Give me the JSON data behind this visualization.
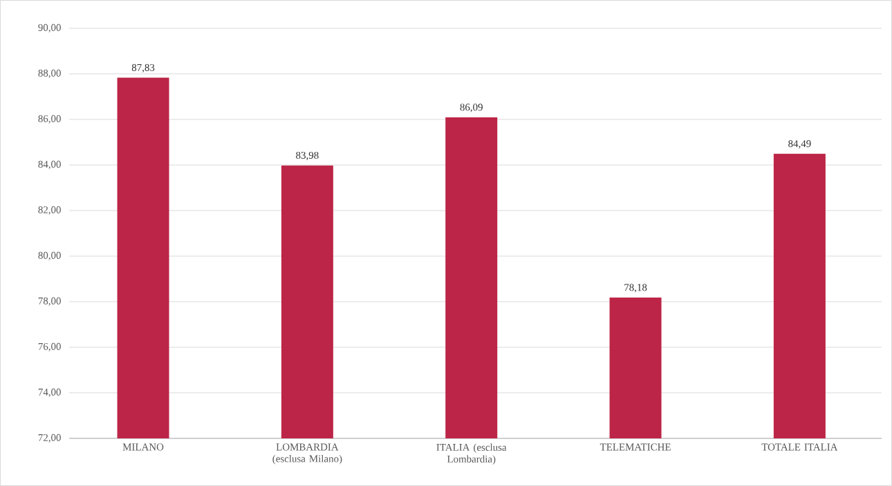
{
  "chart_data": {
    "type": "bar",
    "categories": [
      "MILANO",
      "LOMBARDIA (esclusa Milano)",
      "ITALIA (esclusa Lombardia)",
      "TELEMATICHE",
      "TOTALE ITALIA"
    ],
    "values": [
      87.83,
      83.98,
      86.09,
      78.18,
      84.49
    ],
    "value_labels": [
      "87,83",
      "83,98",
      "86,09",
      "78,18",
      "84,49"
    ],
    "color": "#bc2547",
    "ylim": [
      72,
      90
    ],
    "yticks": [
      {
        "value": 72,
        "label": "72,00"
      },
      {
        "value": 74,
        "label": "74,00"
      },
      {
        "value": 76,
        "label": "76,00"
      },
      {
        "value": 78,
        "label": "78,00"
      },
      {
        "value": 80,
        "label": "80,00"
      },
      {
        "value": 82,
        "label": "82,00"
      },
      {
        "value": 84,
        "label": "84,00"
      },
      {
        "value": 86,
        "label": "86,00"
      },
      {
        "value": 88,
        "label": "88,00"
      },
      {
        "value": 90,
        "label": "90,00"
      }
    ],
    "grid": "y"
  }
}
